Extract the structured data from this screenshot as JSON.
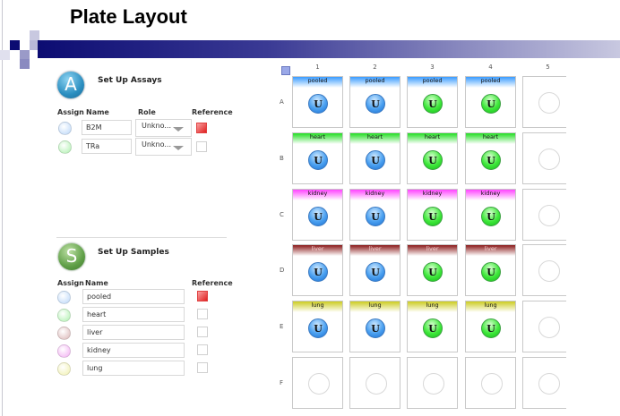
{
  "title": "Plate Layout",
  "assays": {
    "badge": "A",
    "title": "Set Up Assays",
    "headers": {
      "assign": "Assign",
      "name": "Name",
      "role": "Role",
      "reference": "Reference"
    },
    "rows": [
      {
        "name": "B2M",
        "role": "Unkno...",
        "color": "#cfe3fb",
        "reference": true
      },
      {
        "name": "TRa",
        "role": "Unkno...",
        "color": "#c6f5c6",
        "reference": false
      }
    ]
  },
  "samples": {
    "badge": "S",
    "title": "Set Up Samples",
    "headers": {
      "assign": "Assign",
      "name": "Name",
      "reference": "Reference"
    },
    "rows": [
      {
        "name": "pooled",
        "color": "#cfe3fb",
        "reference": true
      },
      {
        "name": "heart",
        "color": "#c6f5c6",
        "reference": false
      },
      {
        "name": "liver",
        "color": "#e6cccc",
        "reference": false
      },
      {
        "name": "kidney",
        "color": "#f7c6f7",
        "reference": false
      },
      {
        "name": "lung",
        "color": "#f5f5c6",
        "reference": false
      }
    ]
  },
  "plate": {
    "columns": [
      "1",
      "2",
      "3",
      "4",
      "5"
    ],
    "rows": [
      {
        "label": "A",
        "sample": "pooled",
        "color": "#3a9cff"
      },
      {
        "label": "B",
        "sample": "heart",
        "color": "#22dd22"
      },
      {
        "label": "C",
        "sample": "kidney",
        "color": "#ff44ff"
      },
      {
        "label": "D",
        "sample": "liver",
        "color": "#8a1a1a"
      },
      {
        "label": "E",
        "sample": "lung",
        "color": "#cccc22"
      },
      {
        "label": "F",
        "sample": "",
        "color": ""
      }
    ],
    "well_label": "U",
    "column_assays": [
      "blue",
      "blue",
      "green",
      "green",
      ""
    ]
  }
}
